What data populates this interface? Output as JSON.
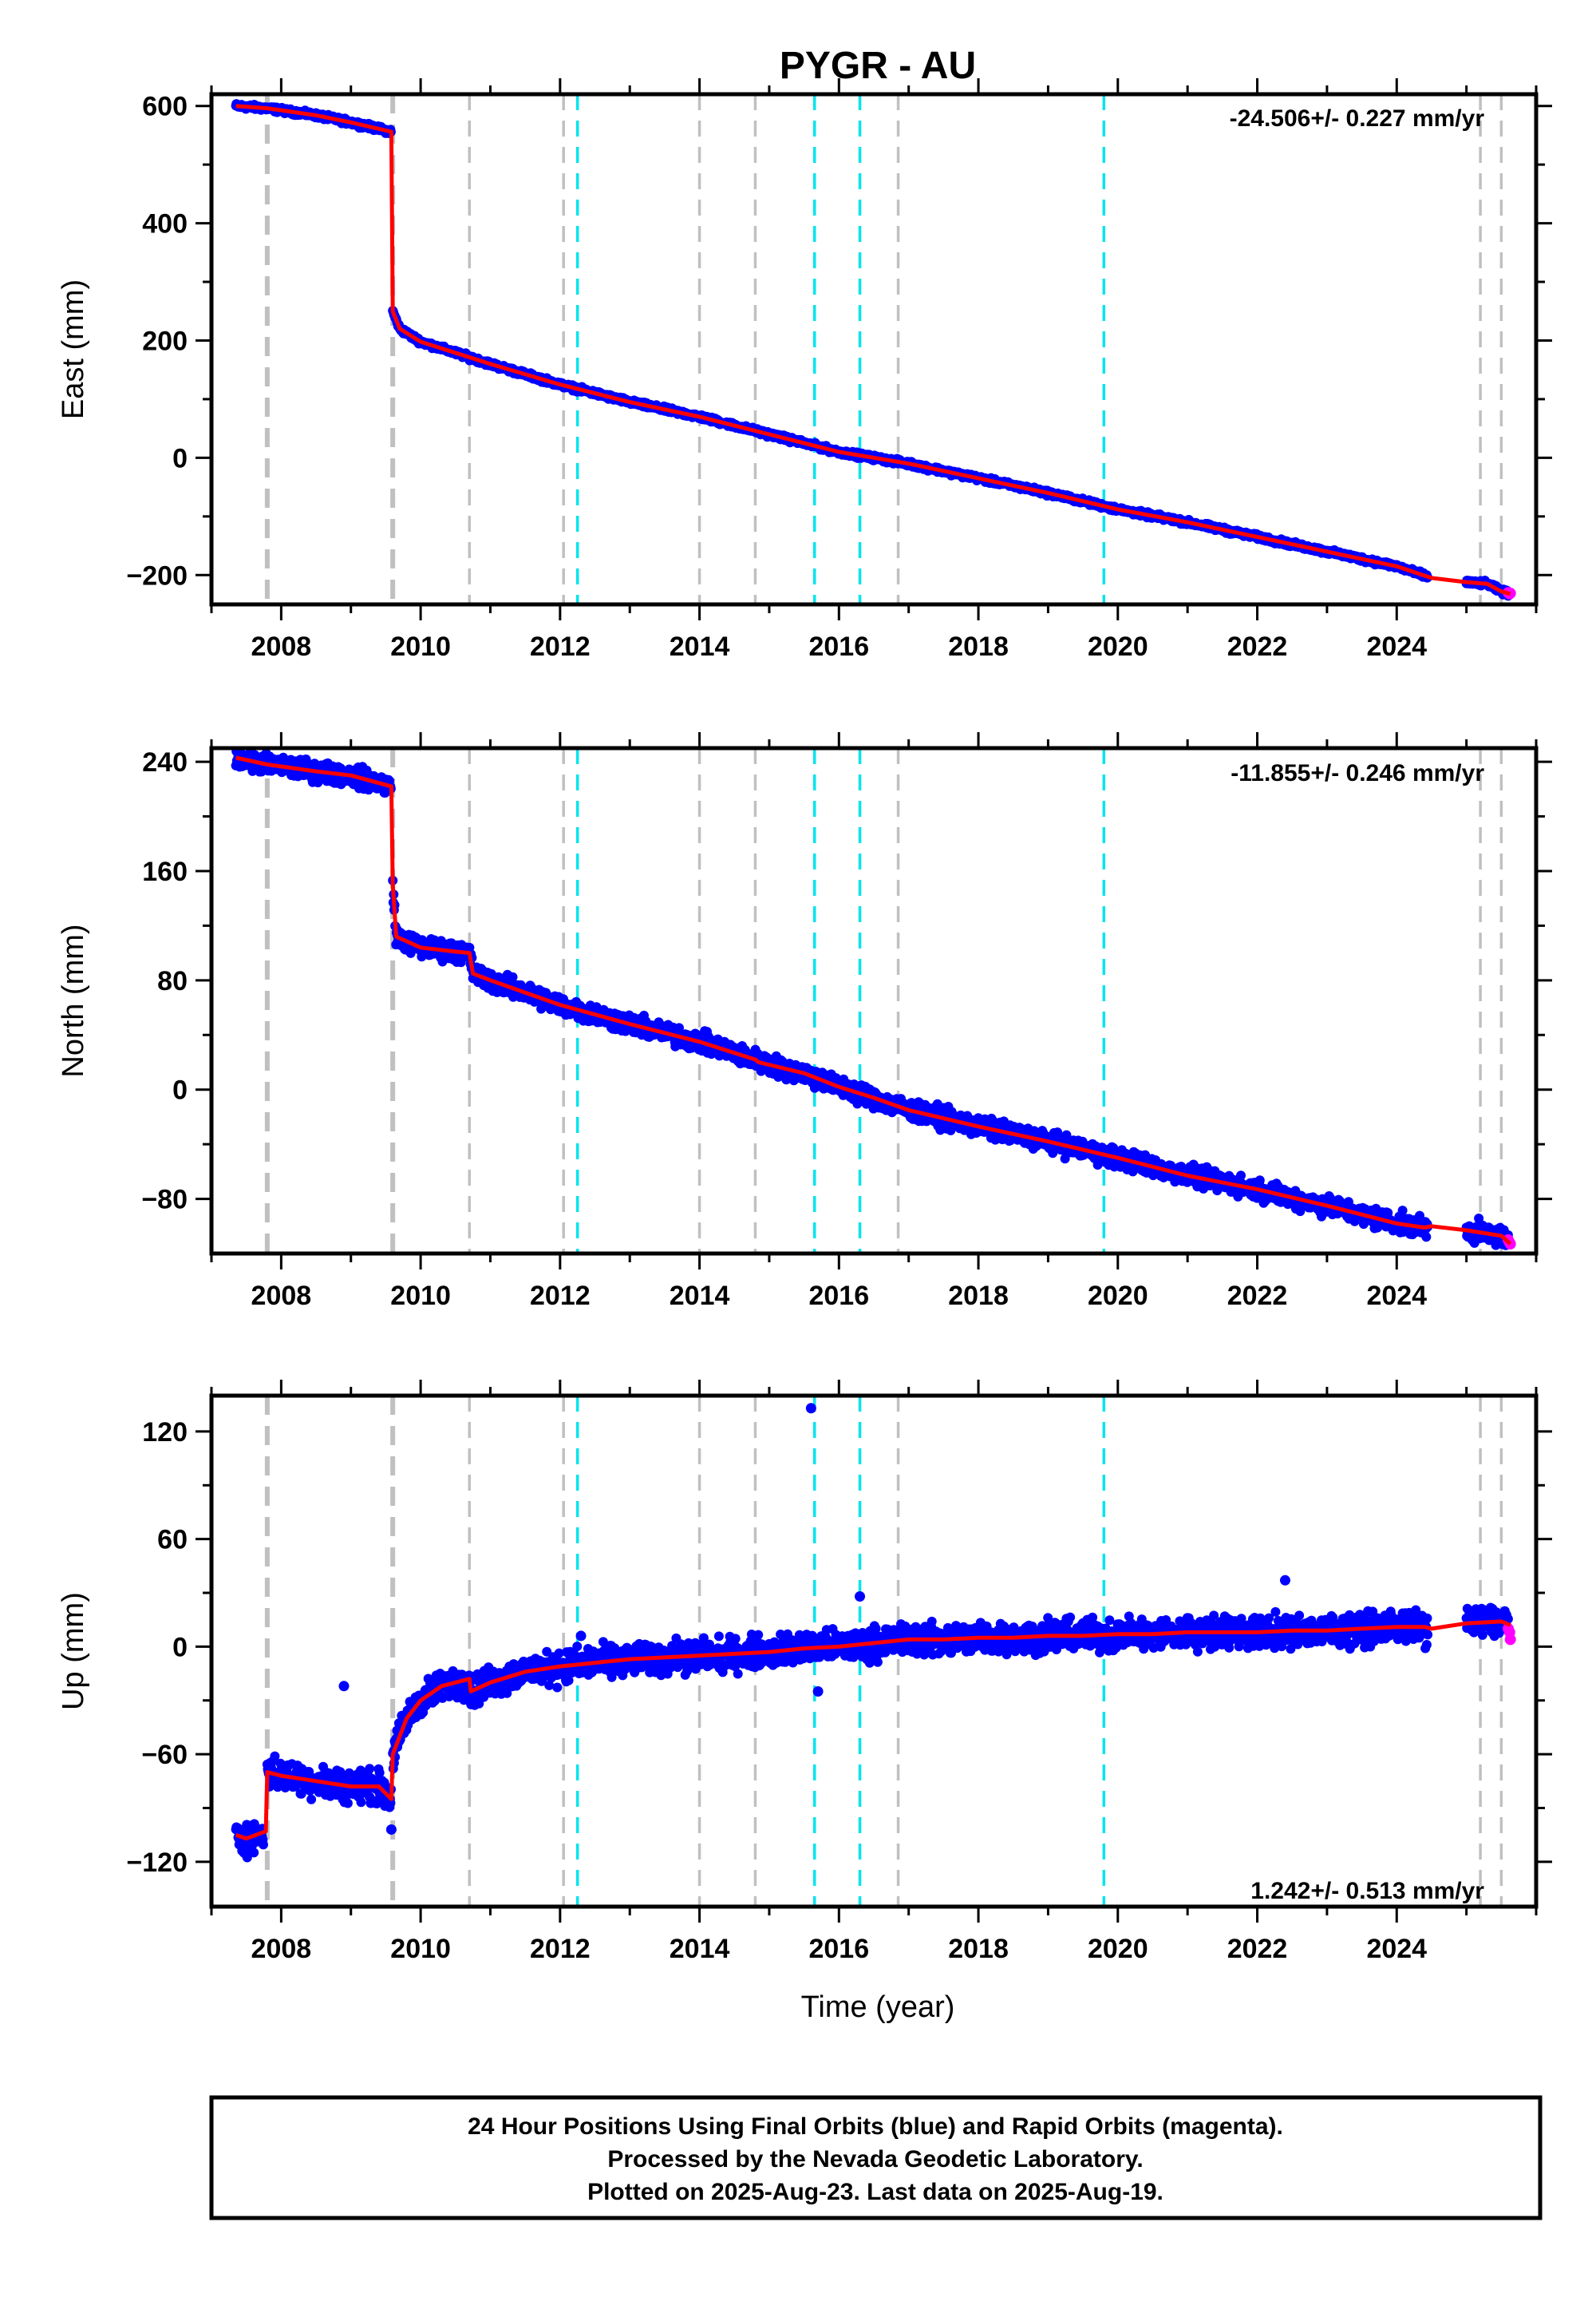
{
  "title": "PYGR - AU",
  "x_axis_label": "Time (year)",
  "caption": {
    "lines": [
      "24 Hour Positions Using Final Orbits (blue) and Rapid Orbits (magenta).",
      "Processed by the Nevada Geodetic Laboratory.",
      "Plotted on 2025-Aug-23. Last data on 2025-Aug-19."
    ]
  },
  "colors": {
    "final_orbits": "#0000ff",
    "rapid_orbits": "#ff00ff",
    "model": "#ff0000",
    "equipment_change": "#c0c0c0",
    "earthquake": "#00e5ee"
  },
  "chart_data": [
    {
      "type": "scatter",
      "component": "east",
      "ylabel": "East (mm)",
      "rate_label": "-24.506+/- 0.227 mm/yr",
      "xlim": [
        2007.0,
        2026.0
      ],
      "ylim": [
        -250,
        620
      ],
      "xticks": [
        2008,
        2010,
        2012,
        2014,
        2016,
        2018,
        2020,
        2022,
        2024
      ],
      "yticks": [
        -200,
        0,
        200,
        400,
        600
      ],
      "ytick_labels": [
        "−200",
        "0",
        "200",
        "400",
        "600"
      ],
      "equipment_changes": [
        2007.8,
        2009.6,
        2010.7,
        2012.05,
        2014.0,
        2014.8,
        2016.85,
        2025.2,
        2025.5
      ],
      "earthquakes": [
        2012.25,
        2015.65,
        2016.3,
        2019.8
      ],
      "model": {
        "x": [
          2007.35,
          2007.8,
          2008.5,
          2009.0,
          2009.58,
          2009.6,
          2009.7,
          2010.0,
          2011.0,
          2012.0,
          2013.0,
          2014.0,
          2015.0,
          2016.0,
          2017.0,
          2018.0,
          2019.0,
          2020.0,
          2021.0,
          2022.0,
          2023.0,
          2024.0,
          2024.5,
          2025.0,
          2025.3,
          2025.5,
          2025.63
        ],
        "y": [
          600,
          596,
          584,
          572,
          556,
          250,
          220,
          198,
          160,
          125,
          95,
          70,
          40,
          10,
          -10,
          -35,
          -60,
          -88,
          -110,
          -135,
          -160,
          -185,
          -205,
          -212,
          -215,
          -228,
          -232
        ]
      },
      "final_orbits": {
        "segments": [
          [
            2007.35,
            2009.58
          ],
          [
            2009.6,
            2024.45
          ],
          [
            2025.0,
            2025.6
          ]
        ],
        "scatter_mm": 3
      },
      "rapid_orbits": {
        "x": [
          2025.6,
          2025.62,
          2025.63
        ],
        "y": [
          -230,
          -232,
          -231
        ]
      }
    },
    {
      "type": "scatter",
      "component": "north",
      "ylabel": "North (mm)",
      "rate_label": "-11.855+/- 0.246 mm/yr",
      "xlim": [
        2007.0,
        2026.0
      ],
      "ylim": [
        -120,
        250
      ],
      "xticks": [
        2008,
        2010,
        2012,
        2014,
        2016,
        2018,
        2020,
        2022,
        2024
      ],
      "yticks": [
        -80,
        0,
        80,
        160,
        240
      ],
      "ytick_labels": [
        "−80",
        "0",
        "80",
        "160",
        "240"
      ],
      "equipment_changes": [
        2007.8,
        2009.6,
        2010.7,
        2012.05,
        2014.0,
        2014.8,
        2016.85,
        2025.2,
        2025.5
      ],
      "earthquakes": [
        2012.25,
        2015.65,
        2016.3,
        2019.8
      ],
      "model": {
        "x": [
          2007.35,
          2007.8,
          2008.5,
          2009.0,
          2009.58,
          2009.6,
          2009.65,
          2010.0,
          2010.5,
          2010.7,
          2010.75,
          2011.0,
          2012.0,
          2013.0,
          2014.0,
          2014.8,
          2014.85,
          2015.5,
          2016.0,
          2016.5,
          2017.0,
          2018.0,
          2019.0,
          2020.0,
          2021.0,
          2022.0,
          2023.0,
          2024.0,
          2024.4,
          2024.5,
          2025.0,
          2025.5,
          2025.63
        ],
        "y": [
          243,
          238,
          233,
          230,
          222,
          150,
          112,
          104,
          101,
          100,
          85,
          80,
          62,
          48,
          35,
          22,
          20,
          12,
          2,
          -6,
          -15,
          -27,
          -38,
          -50,
          -63,
          -73,
          -85,
          -98,
          -101,
          -100,
          -103,
          -107,
          -113
        ]
      },
      "final_orbits": {
        "segments": [
          [
            2007.35,
            2009.58
          ],
          [
            2009.6,
            2024.45
          ],
          [
            2025.0,
            2025.6
          ]
        ],
        "scatter_mm": 5
      },
      "rapid_orbits": {
        "x": [
          2025.6,
          2025.62,
          2025.63
        ],
        "y": [
          -110,
          -112,
          -113
        ]
      }
    },
    {
      "type": "scatter",
      "component": "up",
      "ylabel": "Up (mm)",
      "rate_label": "1.242+/- 0.513 mm/yr",
      "xlim": [
        2007.0,
        2026.0
      ],
      "ylim": [
        -145,
        140
      ],
      "xticks": [
        2008,
        2010,
        2012,
        2014,
        2016,
        2018,
        2020,
        2022,
        2024
      ],
      "yticks": [
        -120,
        -60,
        0,
        60,
        120
      ],
      "ytick_labels": [
        "−120",
        "−60",
        "0",
        "60",
        "120"
      ],
      "equipment_changes": [
        2007.8,
        2009.6,
        2010.7,
        2012.05,
        2014.0,
        2014.8,
        2016.85,
        2025.2,
        2025.5
      ],
      "earthquakes": [
        2012.25,
        2015.65,
        2016.3,
        2019.8
      ],
      "model": {
        "x": [
          2007.35,
          2007.5,
          2007.78,
          2007.8,
          2008.0,
          2008.5,
          2009.0,
          2009.4,
          2009.58,
          2009.6,
          2009.8,
          2010.0,
          2010.3,
          2010.7,
          2010.72,
          2011.0,
          2011.5,
          2012.0,
          2012.5,
          2013.0,
          2013.5,
          2014.0,
          2014.5,
          2015.0,
          2015.5,
          2016.0,
          2016.5,
          2017.0,
          2017.5,
          2018.0,
          2018.5,
          2019.0,
          2019.5,
          2020.0,
          2020.5,
          2021.0,
          2021.5,
          2022.0,
          2022.5,
          2023.0,
          2023.5,
          2024.0,
          2024.4,
          2024.5,
          2025.0,
          2025.5,
          2025.63
        ],
        "y": [
          -105,
          -107,
          -103,
          -70,
          -72,
          -75,
          -78,
          -78,
          -85,
          -60,
          -40,
          -30,
          -22,
          -18,
          -25,
          -20,
          -14,
          -11,
          -9,
          -7,
          -6,
          -5,
          -4,
          -3,
          -1,
          0,
          2,
          4,
          4,
          5,
          5,
          6,
          6,
          7,
          7,
          8,
          8,
          8,
          9,
          9,
          10,
          11,
          11,
          10,
          13,
          14,
          12
        ]
      },
      "final_orbits": {
        "segments": [
          [
            2007.35,
            2007.75
          ],
          [
            2007.8,
            2009.58
          ],
          [
            2009.6,
            2024.45
          ],
          [
            2025.0,
            2025.6
          ]
        ],
        "scatter_mm": 6,
        "outliers": [
          {
            "x": 2008.9,
            "y": -22
          },
          {
            "x": 2009.58,
            "y": -102
          },
          {
            "x": 2012.3,
            "y": 6
          },
          {
            "x": 2015.6,
            "y": 133
          },
          {
            "x": 2015.7,
            "y": -25
          },
          {
            "x": 2016.3,
            "y": 28
          },
          {
            "x": 2022.4,
            "y": 37
          }
        ]
      },
      "rapid_orbits": {
        "x": [
          2025.6,
          2025.62,
          2025.63
        ],
        "y": [
          10,
          8,
          4
        ]
      }
    }
  ]
}
